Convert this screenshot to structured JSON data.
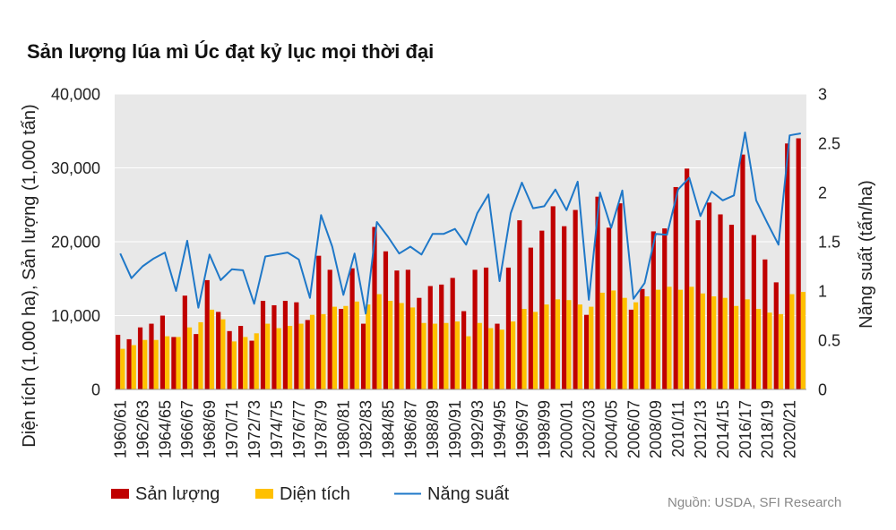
{
  "chart_data": {
    "type": "bar",
    "title": "Sản lượng lúa mì Úc đạt kỷ lục mọi thời đại",
    "ylabel": "Diện tích (1,000 ha), Sản lượng (1,000 tấn)",
    "y2label": "Năng suất (tấn/ha)",
    "ylim": [
      0,
      40000
    ],
    "y2lim": [
      0,
      3
    ],
    "y_ticks": [
      {
        "value": 0,
        "label": "0"
      },
      {
        "value": 10000,
        "label": "10,000"
      },
      {
        "value": 20000,
        "label": "20,000"
      },
      {
        "value": 30000,
        "label": "30,000"
      },
      {
        "value": 40000,
        "label": "40,000"
      }
    ],
    "y2_ticks": [
      {
        "value": 0,
        "label": "0"
      },
      {
        "value": 0.5,
        "label": "0.5"
      },
      {
        "value": 1,
        "label": "1"
      },
      {
        "value": 1.5,
        "label": "1.5"
      },
      {
        "value": 2,
        "label": "2"
      },
      {
        "value": 2.5,
        "label": "2.5"
      },
      {
        "value": 3,
        "label": "3"
      }
    ],
    "grid": true,
    "legend_position": "bottom-left",
    "categories": [
      "1960/61",
      "",
      "1962/63",
      "",
      "1964/65",
      "",
      "1966/67",
      "",
      "1968/69",
      "",
      "1970/71",
      "",
      "1972/73",
      "",
      "1974/75",
      "",
      "1976/77",
      "",
      "1978/79",
      "",
      "1980/81",
      "",
      "1982/83",
      "",
      "1984/85",
      "",
      "1986/87",
      "",
      "1988/89",
      "",
      "1990/91",
      "",
      "1992/93",
      "",
      "1994/95",
      "",
      "1996/97",
      "",
      "1998/99",
      "",
      "2000/01",
      "",
      "2002/03",
      "",
      "2004/05",
      "",
      "2006/07",
      "",
      "2008/09",
      "",
      "2010/11",
      "",
      "2012/13",
      "",
      "2014/15",
      "",
      "2016/17",
      "",
      "2018/19",
      "",
      "2020/21",
      ""
    ],
    "series": [
      {
        "name": "Sản lượng",
        "type": "bar",
        "axis": "left",
        "color": "#c00000",
        "values": [
          7400,
          6800,
          8400,
          8900,
          10000,
          7100,
          12700,
          7500,
          14800,
          10500,
          7900,
          8600,
          6600,
          12000,
          11400,
          12000,
          11800,
          9400,
          18100,
          16200,
          10900,
          16400,
          8900,
          22000,
          18700,
          16100,
          16200,
          12400,
          14000,
          14200,
          15100,
          10600,
          16200,
          16500,
          8900,
          16500,
          22900,
          19200,
          21500,
          24800,
          22100,
          24300,
          10100,
          26100,
          21900,
          25200,
          10800,
          13600,
          21400,
          21800,
          27400,
          29900,
          22900,
          25300,
          23700,
          22300,
          31800,
          20900,
          17600,
          14500,
          33300,
          34000
        ]
      },
      {
        "name": "Diện tích",
        "type": "bar",
        "axis": "left",
        "color": "#ffc000",
        "values": [
          5500,
          6000,
          6700,
          6700,
          7200,
          7100,
          8400,
          9100,
          10800,
          9500,
          6500,
          7100,
          7600,
          8900,
          8300,
          8600,
          8900,
          10100,
          10200,
          11200,
          11300,
          11900,
          11500,
          12900,
          12000,
          11700,
          11100,
          9000,
          8900,
          9000,
          9200,
          7200,
          9000,
          8300,
          8100,
          9200,
          10900,
          10500,
          11500,
          12200,
          12100,
          11500,
          11200,
          13100,
          13400,
          12400,
          11800,
          12600,
          13500,
          13900,
          13500,
          13900,
          13000,
          12600,
          12400,
          11300,
          12200,
          10900,
          10400,
          10200,
          12900,
          13200
        ]
      },
      {
        "name": "Năng suất",
        "type": "line",
        "axis": "right",
        "color": "#1f78c8",
        "values": [
          1.38,
          1.13,
          1.25,
          1.33,
          1.39,
          1.0,
          1.51,
          0.83,
          1.37,
          1.11,
          1.22,
          1.21,
          0.87,
          1.35,
          1.37,
          1.39,
          1.32,
          0.93,
          1.77,
          1.45,
          0.96,
          1.38,
          0.77,
          1.7,
          1.55,
          1.38,
          1.45,
          1.37,
          1.58,
          1.58,
          1.63,
          1.47,
          1.79,
          1.98,
          1.1,
          1.79,
          2.1,
          1.84,
          1.86,
          2.03,
          1.82,
          2.11,
          0.91,
          2.0,
          1.64,
          2.02,
          0.92,
          1.08,
          1.58,
          1.57,
          2.03,
          2.15,
          1.76,
          2.01,
          1.92,
          1.97,
          2.61,
          1.92,
          1.69,
          1.47,
          2.58,
          2.6
        ]
      }
    ]
  },
  "source": "Nguồn: USDA, SFI Research",
  "colors": {
    "plot_background": "#e8e8e8",
    "gridline": "#ffffff",
    "axis_line": "#9a9a9a"
  }
}
